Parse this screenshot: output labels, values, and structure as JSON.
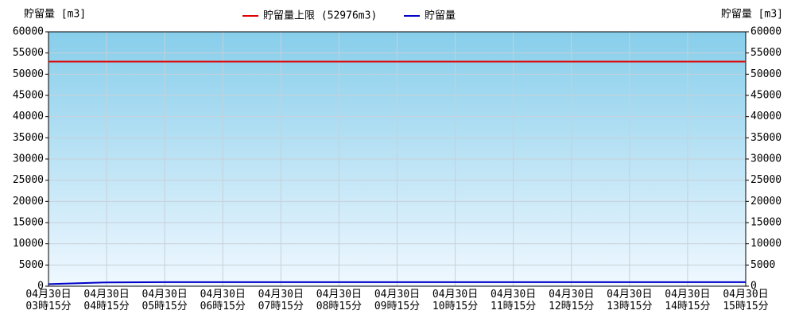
{
  "chart_data": {
    "type": "line",
    "y_label": "貯留量 [m3]",
    "y2_label": "貯留量 [m3]",
    "categories": [
      "04月30日\n03時15分",
      "04月30日\n04時15分",
      "04月30日\n05時15分",
      "04月30日\n06時15分",
      "04月30日\n07時15分",
      "04月30日\n08時15分",
      "04月30日\n09時15分",
      "04月30日\n10時15分",
      "04月30日\n11時15分",
      "04月30日\n12時15分",
      "04月30日\n13時15分",
      "04月30日\n14時15分",
      "04月30日\n15時15分"
    ],
    "series": [
      {
        "name": "貯留量上限 (52976m3)",
        "color": "#e00000",
        "values": [
          52976,
          52976,
          52976,
          52976,
          52976,
          52976,
          52976,
          52976,
          52976,
          52976,
          52976,
          52976,
          52976
        ]
      },
      {
        "name": "貯留量",
        "color": "#0000c8",
        "values": [
          500,
          900,
          950,
          950,
          950,
          950,
          950,
          950,
          950,
          950,
          950,
          950,
          950
        ]
      }
    ],
    "ylim": [
      0,
      60000
    ],
    "yticks": [
      0,
      5000,
      10000,
      15000,
      20000,
      25000,
      30000,
      35000,
      40000,
      45000,
      50000,
      55000,
      60000
    ],
    "y2lim": [
      0,
      60000
    ],
    "y2ticks": [
      0,
      5000,
      10000,
      15000,
      20000,
      25000,
      30000,
      35000,
      40000,
      45000,
      50000,
      55000,
      60000
    ],
    "grid": true,
    "legend": "top"
  }
}
